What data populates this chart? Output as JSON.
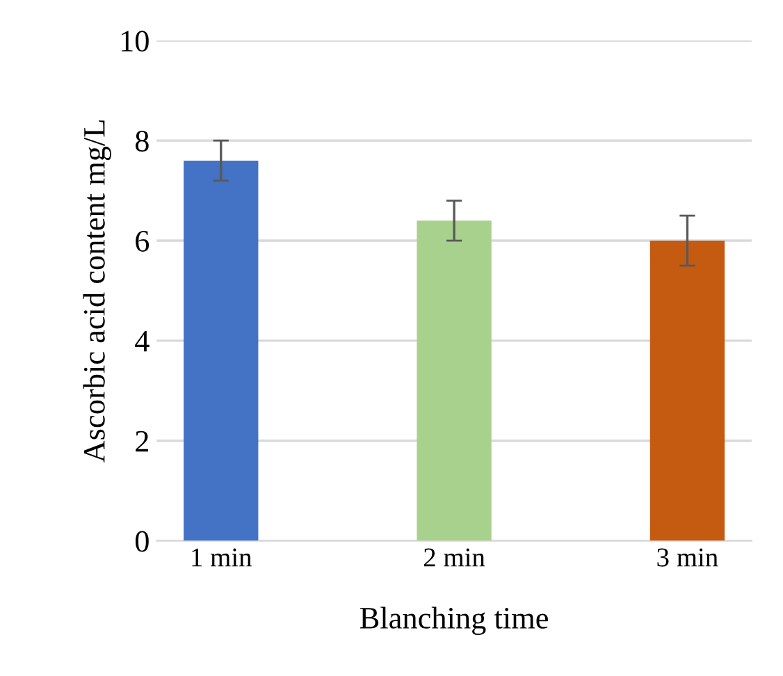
{
  "chart_data": {
    "type": "bar",
    "xlabel": "Blanching time",
    "ylabel": "Ascorbic acid content mg/L",
    "categories": [
      "1 min",
      "2 min",
      "3 min"
    ],
    "values": [
      7.6,
      6.4,
      6.0
    ],
    "errors": [
      0.4,
      0.4,
      0.5
    ],
    "colors": [
      "#4472c4",
      "#a9d18e",
      "#c55a11"
    ],
    "ylim": [
      0,
      10
    ],
    "yticks": [
      0,
      2,
      4,
      6,
      8,
      10
    ],
    "grid": "y"
  }
}
